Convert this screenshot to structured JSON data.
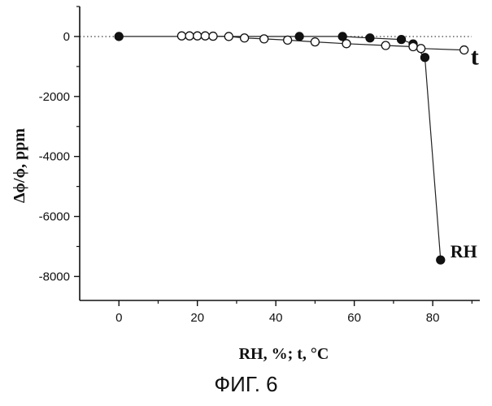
{
  "caption": "ФИГ. 6",
  "chart_data": {
    "type": "scatter",
    "xlabel": "RH, %; t, °C",
    "ylabel": "Δϕ/ϕ, ppm",
    "xlim": [
      -10,
      92
    ],
    "ylim": [
      -8800,
      1000
    ],
    "x_ticks": [
      0,
      20,
      40,
      60,
      80
    ],
    "y_ticks": [
      0,
      -2000,
      -4000,
      -6000,
      -8000
    ],
    "reference_line": {
      "y": 0,
      "style": "dotted"
    },
    "series": [
      {
        "name": "RH",
        "marker": "filled-circle",
        "x": [
          0,
          46,
          57,
          64,
          72,
          75,
          78,
          82
        ],
        "y": [
          0,
          0,
          0,
          -50,
          -100,
          -250,
          -700,
          -7450
        ]
      },
      {
        "name": "t",
        "marker": "open-circle",
        "x": [
          16,
          18,
          20,
          22,
          24,
          28,
          32,
          37,
          43,
          50,
          58,
          68,
          75,
          77,
          88
        ],
        "y": [
          20,
          20,
          20,
          20,
          10,
          0,
          -50,
          -80,
          -120,
          -180,
          -240,
          -300,
          -340,
          -400,
          -450
        ]
      }
    ]
  }
}
